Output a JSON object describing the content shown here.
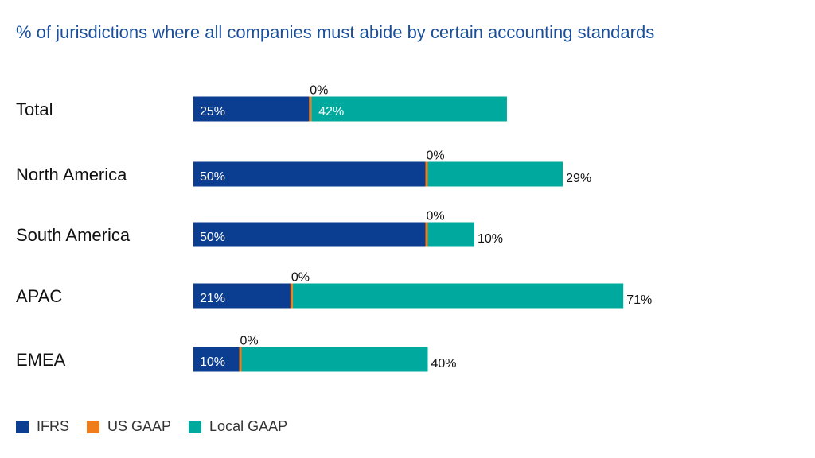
{
  "chart_data": {
    "type": "bar",
    "orientation": "horizontal",
    "stacked": true,
    "title": "% of jurisdictions where all companies must abide by certain accounting standards",
    "categories": [
      "Total",
      "North America",
      "South America",
      "APAC",
      "EMEA"
    ],
    "series": [
      {
        "name": "IFRS",
        "color": "#0b3d91",
        "values": [
          25,
          50,
          50,
          21,
          10
        ],
        "labels": [
          "25%",
          "50%",
          "50%",
          "21%",
          "10%"
        ]
      },
      {
        "name": "US GAAP",
        "color": "#f07d1a",
        "values": [
          0,
          0,
          0,
          0,
          0
        ],
        "labels": [
          "0%",
          "0%",
          "0%",
          "0%",
          "0%"
        ]
      },
      {
        "name": "Local GAAP",
        "color": "#00a99d",
        "values": [
          42,
          29,
          10,
          71,
          40
        ],
        "labels": [
          "42%",
          "29%",
          "10%",
          "71%",
          "40%"
        ]
      }
    ],
    "xlim": [
      0,
      100
    ],
    "grid": false,
    "legend_position": "bottom-left"
  }
}
